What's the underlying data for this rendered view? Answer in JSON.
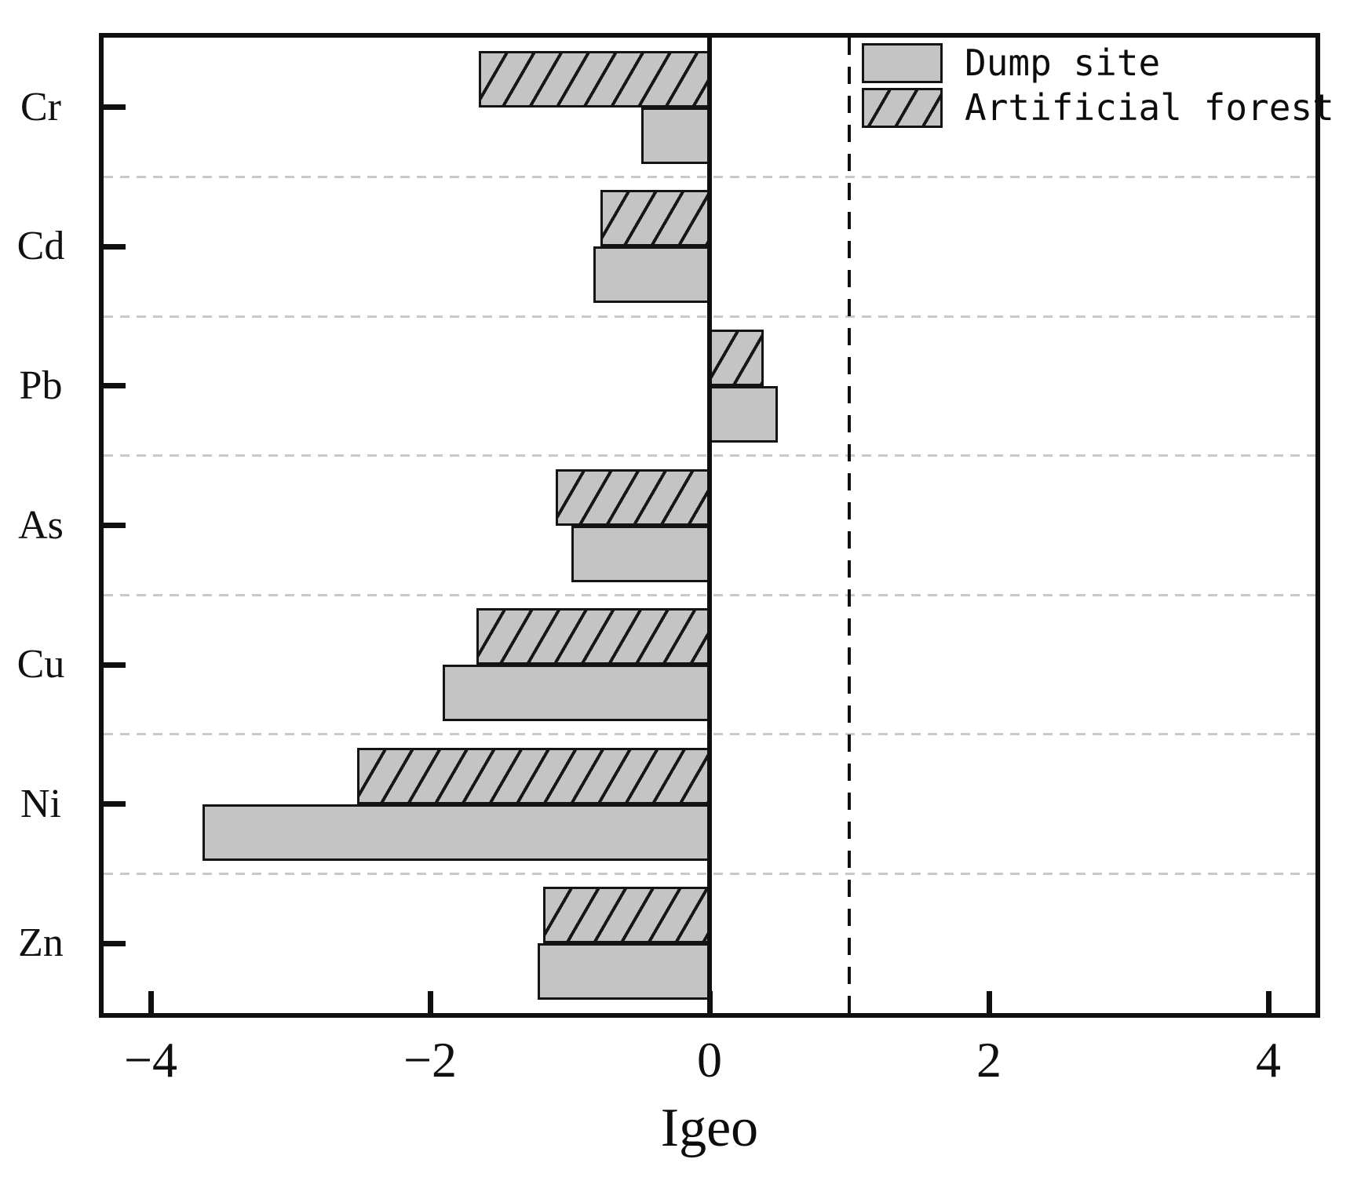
{
  "chart_data": {
    "type": "bar",
    "orientation": "horizontal",
    "title": "",
    "xlabel": "Igeo",
    "categories": [
      "Cr",
      "Cd",
      "Pb",
      "As",
      "Cu",
      "Ni",
      "Zn"
    ],
    "series": [
      {
        "name": "Dump site",
        "pattern": "solid",
        "row_slot": 1,
        "values": [
          -0.49,
          -0.83,
          0.49,
          -0.99,
          -1.91,
          -3.63,
          -1.23
        ]
      },
      {
        "name": "Artificial forest",
        "pattern": "hatched",
        "row_slot": 0,
        "values": [
          -1.65,
          -0.78,
          0.39,
          -1.1,
          -1.67,
          -2.52,
          -1.19
        ]
      }
    ],
    "x_ticks": [
      -4,
      -2,
      0,
      2,
      4
    ],
    "x_tick_labels": [
      "−4",
      "−2",
      "0",
      "2",
      "4"
    ],
    "xlim": [
      -4.37,
      4.37
    ],
    "zero_line_x": 0,
    "reference_line_x": 1,
    "grid": "horizontal-dashed",
    "legend_position": "top-right-inside",
    "colors": {
      "bar_fill": "#c4c4c4",
      "bar_border": "#141414",
      "hatch_line": "#161616",
      "grid_line": "#c9c9c9",
      "axis": "#101010",
      "reference_line": "#101010",
      "background": "#ffffff"
    }
  }
}
